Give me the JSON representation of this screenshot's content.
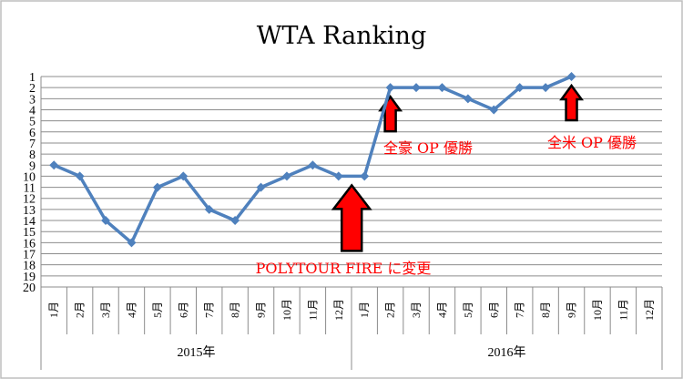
{
  "chart_data": {
    "type": "line",
    "title": "WTA Ranking",
    "y_axis": {
      "min": 1,
      "max": 20,
      "inverted": true,
      "tick_labels": [
        "1",
        "2",
        "3",
        "4",
        "5",
        "6",
        "7",
        "8",
        "9",
        "10",
        "11",
        "12",
        "13",
        "14",
        "15",
        "16",
        "17",
        "18",
        "19",
        "20"
      ]
    },
    "month_labels": [
      "1月",
      "2月",
      "3月",
      "4月",
      "5月",
      "6月",
      "7月",
      "8月",
      "9月",
      "10月",
      "11月",
      "12月",
      "1月",
      "2月",
      "3月",
      "4月",
      "5月",
      "6月",
      "7月",
      "8月",
      "9月",
      "10月",
      "11月",
      "12月"
    ],
    "year_groups": [
      {
        "label": "2015年",
        "months": 12
      },
      {
        "label": "2016年",
        "months": 12
      }
    ],
    "series": [
      {
        "values": [
          9,
          10,
          14,
          16,
          11,
          10,
          13,
          14,
          11,
          10,
          9,
          10,
          10,
          2,
          2,
          2,
          3,
          4,
          2,
          2,
          1,
          null,
          null,
          null
        ],
        "color": "#4f81bd"
      }
    ],
    "gridlines": true,
    "legend": "none",
    "annotations": [
      {
        "text": "POLYTOUR FIRE に変更",
        "color": "#ff0000",
        "month_index": 12,
        "arrow": "large"
      },
      {
        "text": "全豪 OP 優勝",
        "color": "#ff0000",
        "month_index": 13,
        "arrow": "small"
      },
      {
        "text": "全米 OP 優勝",
        "color": "#ff0000",
        "month_index": 20,
        "arrow": "small"
      }
    ]
  }
}
